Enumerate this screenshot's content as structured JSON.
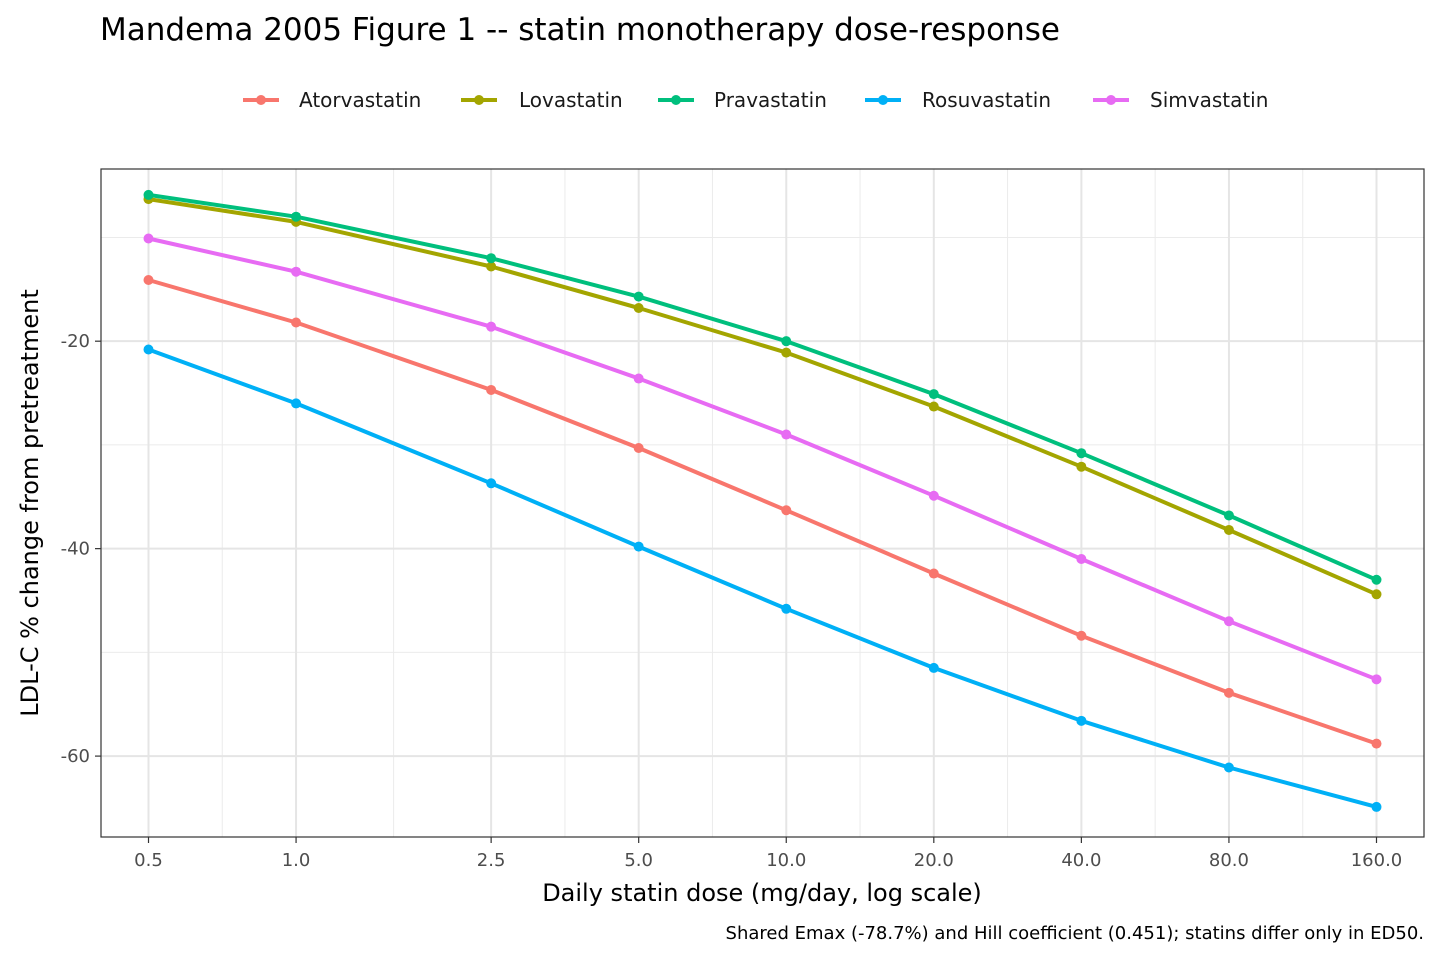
{
  "chart_data": {
    "type": "line",
    "title": "Mandema 2005 Figure 1 -- statin monotherapy dose-response",
    "xlabel": "Daily statin dose (mg/day, log scale)",
    "ylabel": "LDL-C % change from pretreatment",
    "caption": "Shared Emax (-78.7%) and Hill coefficient (0.451); statins differ only in ED50.",
    "x_scale": "log",
    "x": [
      0.5,
      1.0,
      2.5,
      5.0,
      10.0,
      20.0,
      40.0,
      80.0,
      160.0
    ],
    "x_tick_labels": [
      "0.5",
      "1.0",
      "2.5",
      "5.0",
      "10.0",
      "20.0",
      "40.0",
      "80.0",
      "160.0"
    ],
    "y_ticks": [
      -20,
      -40,
      -60
    ],
    "y_tick_labels": [
      "-20",
      "-40",
      "-60"
    ],
    "xlim": [
      0.4,
      200
    ],
    "ylim": [
      -67.8,
      -3.4
    ],
    "grid": true,
    "legend_position": "top",
    "series": [
      {
        "name": "Atorvastatin",
        "color": "#F8766D",
        "values": [
          -14.1,
          -18.2,
          -24.7,
          -30.3,
          -36.3,
          -42.4,
          -48.4,
          -53.9,
          -58.8
        ]
      },
      {
        "name": "Lovastatin",
        "color": "#A3A500",
        "values": [
          -6.3,
          -8.5,
          -12.8,
          -16.8,
          -21.1,
          -26.3,
          -32.1,
          -38.2,
          -44.4
        ]
      },
      {
        "name": "Pravastatin",
        "color": "#00BF7D",
        "values": [
          -5.9,
          -8.0,
          -12.0,
          -15.7,
          -20.0,
          -25.1,
          -30.8,
          -36.8,
          -43.0
        ]
      },
      {
        "name": "Rosuvastatin",
        "color": "#00B0F6",
        "values": [
          -20.8,
          -26.0,
          -33.7,
          -39.8,
          -45.8,
          -51.5,
          -56.6,
          -61.1,
          -64.9
        ]
      },
      {
        "name": "Simvastatin",
        "color": "#E76BF3",
        "values": [
          -10.1,
          -13.3,
          -18.6,
          -23.6,
          -29.0,
          -34.9,
          -41.0,
          -47.0,
          -52.6
        ]
      }
    ]
  }
}
